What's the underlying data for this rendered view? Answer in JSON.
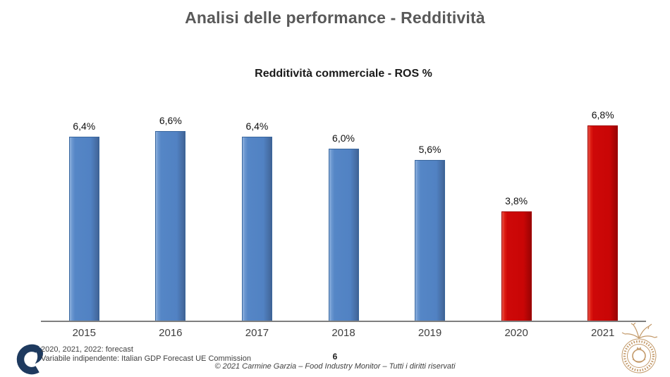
{
  "slide": {
    "title": "Analisi delle performance - Redditività",
    "page_number": "6",
    "copyright": "© 2021 Carmine Garzia – Food Industry Monitor – Tutti i diritti riservati",
    "footnote_line1": "2020, 2021, 2022: forecast",
    "footnote_line2": "Variabile indipendente: Italian GDP Forecast UE Commission"
  },
  "chart_data": {
    "type": "bar",
    "title": "Redditività commerciale - ROS %",
    "categories": [
      "2015",
      "2016",
      "2017",
      "2018",
      "2019",
      "2020",
      "2021"
    ],
    "values": [
      6.4,
      6.6,
      6.4,
      6.0,
      5.6,
      3.8,
      6.8
    ],
    "value_labels": [
      "6,4%",
      "6,6%",
      "6,4%",
      "6,0%",
      "5,6%",
      "3,8%",
      "6,8%"
    ],
    "bar_color_keys": [
      "blue",
      "blue",
      "blue",
      "blue",
      "blue",
      "red",
      "red"
    ],
    "palette": {
      "blue": "#5586C6",
      "red": "#CE0808",
      "axis": "#7f7f7f"
    },
    "xlabel": "",
    "ylabel": "",
    "ylim": [
      0,
      7.7
    ],
    "grid": false,
    "legend": false
  },
  "icons": {
    "footer_logo": "cg-monogram",
    "right_logo": "university-seal"
  }
}
